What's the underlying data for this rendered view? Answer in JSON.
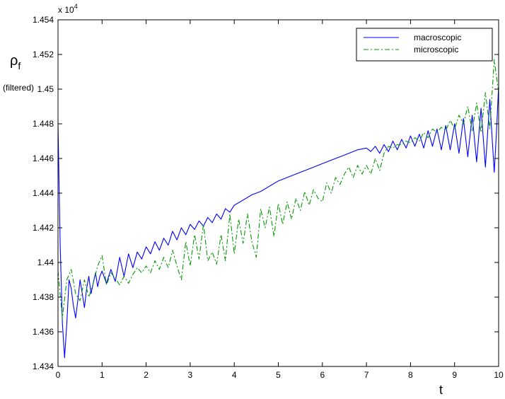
{
  "chart_data": {
    "type": "line",
    "xlabel": "t",
    "ylabel": "ρ",
    "ylabel_subscript": "f",
    "ylabel_note": "(filtered)",
    "y_multiplier_label": "x 10",
    "y_multiplier_exponent": "4",
    "xlim": [
      0,
      10
    ],
    "ylim": [
      1.434,
      1.454
    ],
    "x_ticks": [
      0,
      1,
      2,
      3,
      4,
      5,
      6,
      7,
      8,
      9,
      10
    ],
    "x_tick_labels": [
      "0",
      "1",
      "2",
      "3",
      "4",
      "5",
      "6",
      "7",
      "8",
      "9",
      "10"
    ],
    "y_ticks": [
      1.434,
      1.436,
      1.438,
      1.44,
      1.442,
      1.444,
      1.446,
      1.448,
      1.45,
      1.452,
      1.454
    ],
    "y_tick_labels": [
      "1.434",
      "1.436",
      "1.438",
      "1.44",
      "1.442",
      "1.444",
      "1.446",
      "1.448",
      "1.45",
      "1.452",
      "1.454"
    ],
    "grid": false,
    "legend_position": "top-right",
    "series": [
      {
        "name": "macroscopic",
        "color": "#0000ff",
        "dash": "solid",
        "x": [
          0,
          0.05,
          0.1,
          0.15,
          0.2,
          0.25,
          0.3,
          0.35,
          0.4,
          0.45,
          0.5,
          0.55,
          0.6,
          0.65,
          0.7,
          0.75,
          0.8,
          0.85,
          0.9,
          0.95,
          1.0,
          1.1,
          1.2,
          1.3,
          1.4,
          1.5,
          1.6,
          1.7,
          1.8,
          1.9,
          2.0,
          2.1,
          2.2,
          2.3,
          2.4,
          2.5,
          2.6,
          2.7,
          2.8,
          2.9,
          3.0,
          3.1,
          3.2,
          3.3,
          3.4,
          3.5,
          3.6,
          3.7,
          3.8,
          3.9,
          4.0,
          4.2,
          4.4,
          4.6,
          4.8,
          5.0,
          5.2,
          5.4,
          5.6,
          5.8,
          6.0,
          6.2,
          6.4,
          6.6,
          6.8,
          7.0,
          7.1,
          7.2,
          7.3,
          7.4,
          7.5,
          7.6,
          7.7,
          7.8,
          7.9,
          8.0,
          8.1,
          8.2,
          8.3,
          8.4,
          8.5,
          8.6,
          8.7,
          8.8,
          8.9,
          9.0,
          9.1,
          9.2,
          9.3,
          9.4,
          9.5,
          9.6,
          9.7,
          9.8,
          9.9,
          9.95,
          10.0
        ],
        "y": [
          1.448,
          1.441,
          1.4365,
          1.4345,
          1.4365,
          1.439,
          1.4385,
          1.4375,
          1.4368,
          1.4378,
          1.439,
          1.4382,
          1.4374,
          1.4385,
          1.4392,
          1.4382,
          1.4388,
          1.4394,
          1.4386,
          1.4392,
          1.4395,
          1.4388,
          1.4396,
          1.4389,
          1.4403,
          1.4392,
          1.4405,
          1.4397,
          1.4406,
          1.4402,
          1.4409,
          1.4405,
          1.4412,
          1.4407,
          1.4414,
          1.441,
          1.4418,
          1.4413,
          1.442,
          1.4416,
          1.4422,
          1.4419,
          1.4424,
          1.4421,
          1.4426,
          1.4423,
          1.4428,
          1.4425,
          1.4431,
          1.4429,
          1.4433,
          1.4436,
          1.4439,
          1.4441,
          1.4444,
          1.4447,
          1.4449,
          1.4451,
          1.4453,
          1.4455,
          1.4457,
          1.4459,
          1.4461,
          1.4463,
          1.4465,
          1.4466,
          1.4464,
          1.4467,
          1.4463,
          1.4468,
          1.4464,
          1.447,
          1.4465,
          1.4471,
          1.4466,
          1.4473,
          1.4467,
          1.4474,
          1.4466,
          1.4476,
          1.4467,
          1.4477,
          1.4465,
          1.4479,
          1.4465,
          1.448,
          1.4463,
          1.4483,
          1.4461,
          1.4485,
          1.4458,
          1.4489,
          1.4455,
          1.4494,
          1.4452,
          1.4475,
          1.4502
        ]
      },
      {
        "name": "microscopic",
        "color": "#009900",
        "dash": "dashdot",
        "x": [
          0,
          0.1,
          0.2,
          0.3,
          0.4,
          0.5,
          0.6,
          0.7,
          0.8,
          0.9,
          1.0,
          1.1,
          1.2,
          1.3,
          1.4,
          1.5,
          1.6,
          1.7,
          1.8,
          1.9,
          2.0,
          2.1,
          2.2,
          2.3,
          2.4,
          2.5,
          2.6,
          2.7,
          2.8,
          2.9,
          3.0,
          3.1,
          3.2,
          3.3,
          3.4,
          3.5,
          3.6,
          3.7,
          3.8,
          3.9,
          4.0,
          4.1,
          4.2,
          4.3,
          4.4,
          4.5,
          4.6,
          4.7,
          4.8,
          4.9,
          5.0,
          5.1,
          5.2,
          5.3,
          5.4,
          5.5,
          5.6,
          5.7,
          5.8,
          5.9,
          6.0,
          6.1,
          6.2,
          6.3,
          6.4,
          6.5,
          6.6,
          6.7,
          6.8,
          6.9,
          7.0,
          7.1,
          7.2,
          7.3,
          7.4,
          7.5,
          7.6,
          7.7,
          7.8,
          7.9,
          8.0,
          8.1,
          8.2,
          8.3,
          8.4,
          8.5,
          8.6,
          8.7,
          8.8,
          8.9,
          9.0,
          9.1,
          9.2,
          9.3,
          9.4,
          9.5,
          9.6,
          9.7,
          9.8,
          9.9,
          10.0
        ],
        "y": [
          1.4395,
          1.4368,
          1.439,
          1.4396,
          1.4382,
          1.4378,
          1.439,
          1.438,
          1.4388,
          1.4398,
          1.4404,
          1.4387,
          1.4394,
          1.4391,
          1.4387,
          1.4392,
          1.4388,
          1.4393,
          1.4397,
          1.4394,
          1.4398,
          1.4394,
          1.4401,
          1.4396,
          1.4403,
          1.4397,
          1.4407,
          1.4398,
          1.439,
          1.4412,
          1.4398,
          1.4416,
          1.4402,
          1.4422,
          1.4401,
          1.4406,
          1.4399,
          1.4416,
          1.4401,
          1.4428,
          1.4405,
          1.4425,
          1.4411,
          1.4428,
          1.4412,
          1.4403,
          1.4431,
          1.442,
          1.4432,
          1.4415,
          1.4434,
          1.4422,
          1.4435,
          1.4425,
          1.4437,
          1.443,
          1.4441,
          1.4433,
          1.4442,
          1.4437,
          1.4435,
          1.4446,
          1.444,
          1.4449,
          1.4445,
          1.4451,
          1.4455,
          1.4449,
          1.4456,
          1.4451,
          1.4456,
          1.4451,
          1.446,
          1.4453,
          1.4463,
          1.4467,
          1.4466,
          1.4468,
          1.4468,
          1.447,
          1.4469,
          1.4472,
          1.447,
          1.4475,
          1.4472,
          1.4477,
          1.4475,
          1.4478,
          1.4476,
          1.4482,
          1.4477,
          1.4485,
          1.448,
          1.449,
          1.4476,
          1.4492,
          1.4475,
          1.4498,
          1.4477,
          1.4517,
          1.4498
        ]
      }
    ]
  }
}
